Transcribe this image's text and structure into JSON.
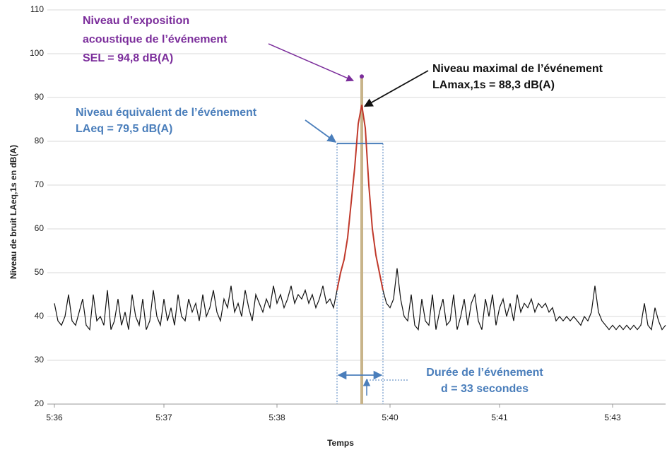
{
  "chart_data": {
    "type": "line",
    "x_label": "Temps",
    "y_label": "Niveau de bruit LAeq,1s en dB(A)",
    "xlim": [
      -2,
      173
    ],
    "xticks": [
      {
        "value": 0,
        "label": "5:36"
      },
      {
        "value": 31,
        "label": "5:37"
      },
      {
        "value": 63,
        "label": "5:38"
      },
      {
        "value": 95,
        "label": "5:40"
      },
      {
        "value": 126,
        "label": "5:41"
      },
      {
        "value": 158,
        "label": "5:43"
      }
    ],
    "ylim": [
      20,
      110
    ],
    "yticks": [
      20,
      30,
      40,
      50,
      60,
      70,
      80,
      90,
      100,
      110
    ],
    "grid": true,
    "series": [
      {
        "color": "#111111",
        "values": [
          43,
          39,
          38,
          40,
          45,
          39,
          38,
          41,
          44,
          38,
          37,
          45,
          39,
          40,
          38,
          46,
          37,
          39,
          44,
          38,
          41,
          37,
          45,
          40,
          38,
          44,
          37,
          39,
          46,
          40,
          38,
          44,
          39,
          42,
          38,
          45,
          40,
          39,
          44,
          41,
          43,
          39,
          45,
          40,
          42,
          46,
          41,
          39,
          44,
          42,
          47,
          41,
          43,
          40,
          46,
          42,
          39,
          45,
          43,
          41,
          44,
          42,
          47,
          43,
          45,
          42,
          44,
          47,
          43,
          45,
          44,
          46,
          43,
          45,
          42,
          44,
          47,
          43,
          44,
          42,
          46,
          null,
          null,
          null,
          null,
          null,
          null,
          null,
          null,
          null,
          null,
          null,
          null,
          46,
          43,
          42,
          44,
          51,
          44,
          40,
          39,
          45,
          38,
          37,
          44,
          39,
          38,
          45,
          37,
          41,
          44,
          38,
          39,
          45,
          37,
          40,
          44,
          38,
          43,
          45,
          39,
          37,
          44,
          40,
          45,
          38,
          42,
          44,
          40,
          43,
          39,
          45,
          41,
          43,
          42,
          44,
          41,
          43,
          42,
          43,
          41,
          42,
          39,
          40,
          39,
          40,
          39,
          40,
          39,
          38,
          40,
          39,
          41,
          47,
          41,
          39,
          38,
          37,
          38,
          37,
          38,
          37,
          38,
          37,
          38,
          37,
          38,
          43,
          38,
          37,
          42,
          39,
          37,
          38
        ]
      },
      {
        "color": "#c0392b",
        "values": [
          null,
          null,
          null,
          null,
          null,
          null,
          null,
          null,
          null,
          null,
          null,
          null,
          null,
          null,
          null,
          null,
          null,
          null,
          null,
          null,
          null,
          null,
          null,
          null,
          null,
          null,
          null,
          null,
          null,
          null,
          null,
          null,
          null,
          null,
          null,
          null,
          null,
          null,
          null,
          null,
          null,
          null,
          null,
          null,
          null,
          null,
          null,
          null,
          null,
          null,
          null,
          null,
          null,
          null,
          null,
          null,
          null,
          null,
          null,
          null,
          null,
          null,
          null,
          null,
          null,
          null,
          null,
          null,
          null,
          null,
          null,
          null,
          null,
          null,
          null,
          null,
          null,
          null,
          null,
          null,
          46,
          50,
          53,
          58,
          66,
          74,
          84,
          88.3,
          83,
          70,
          60,
          54,
          50,
          46,
          null,
          null,
          null,
          null,
          null,
          null,
          null,
          null,
          null,
          null,
          null,
          null,
          null,
          null,
          null,
          null,
          null,
          null,
          null,
          null,
          null,
          null,
          null,
          null,
          null,
          null,
          null,
          null,
          null,
          null,
          null,
          null,
          null,
          null,
          null,
          null,
          null,
          null,
          null,
          null,
          null,
          null,
          null,
          null,
          null,
          null,
          null,
          null,
          null,
          null,
          null,
          null,
          null,
          null,
          null,
          null,
          null,
          null,
          null,
          null,
          null,
          null,
          null,
          null,
          null,
          null,
          null,
          null,
          null,
          null,
          null,
          null,
          null,
          null,
          null,
          null
        ]
      }
    ],
    "annotations": [
      {
        "color": "#7b2d9b",
        "text": [
          "Niveau d’exposition",
          "acoustique  de l’événement",
          "SEL = 94,8 dB(A)"
        ],
        "value": 94.8
      },
      {
        "color": "#111111",
        "text": [
          "Niveau maximal de l’événement",
          "LAmax,1s  = 88,3 dB(A)"
        ],
        "value": 88.3
      },
      {
        "color": "#4a7ebb",
        "text": [
          "Niveau équivalent de l’événement",
          "LAeq = 79,5 dB(A)"
        ],
        "value": 79.5
      },
      {
        "color": "#4a7ebb",
        "text": [
          "Durée de l’événement",
          "d = 33 secondes"
        ]
      }
    ]
  }
}
